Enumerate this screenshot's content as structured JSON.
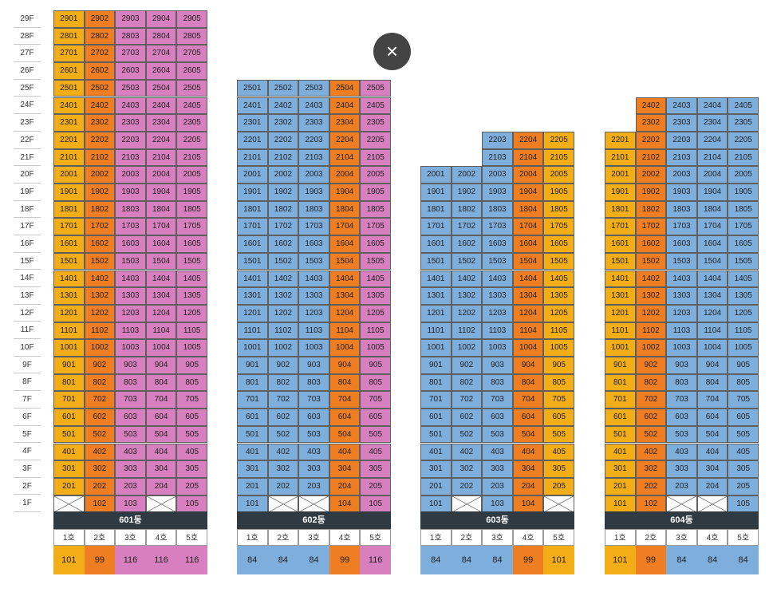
{
  "colors": {
    "yellow": "#f3ad17",
    "orange": "#ef7d22",
    "pink": "#d77fbf",
    "blue": "#7eaedc",
    "header": "#2f3a43"
  },
  "floors": [
    "29F",
    "28F",
    "27F",
    "26F",
    "25F",
    "24F",
    "23F",
    "22F",
    "21F",
    "20F",
    "19F",
    "18F",
    "17F",
    "16F",
    "15F",
    "14F",
    "13F",
    "12F",
    "11F",
    "10F",
    "9F",
    "8F",
    "7F",
    "6F",
    "5F",
    "4F",
    "3F",
    "2F",
    "1F"
  ],
  "close_icon": "×",
  "buildings": [
    {
      "name": "601동",
      "top_floor": 29,
      "unit_colors": [
        "yellow",
        "orange",
        "pink",
        "pink",
        "pink"
      ],
      "types": [
        "1호",
        "2호",
        "3호",
        "4호",
        "5호"
      ],
      "sizes": [
        "101",
        "99",
        "116",
        "116",
        "116"
      ],
      "floor_ranges": [
        [
          1,
          29
        ],
        [
          1,
          29
        ],
        [
          1,
          29
        ],
        [
          1,
          29
        ],
        [
          1,
          29
        ]
      ],
      "empty": [
        "101",
        "104"
      ]
    },
    {
      "name": "602동",
      "top_floor": 25,
      "unit_colors": [
        "blue",
        "blue",
        "blue",
        "orange",
        "pink"
      ],
      "types": [
        "1호",
        "2호",
        "3호",
        "4호",
        "5호"
      ],
      "sizes": [
        "84",
        "84",
        "84",
        "99",
        "116"
      ],
      "floor_ranges": [
        [
          1,
          25
        ],
        [
          1,
          25
        ],
        [
          1,
          25
        ],
        [
          1,
          25
        ],
        [
          1,
          25
        ]
      ],
      "empty": [
        "102",
        "103"
      ]
    },
    {
      "name": "603동",
      "top_floor": 22,
      "unit_colors": [
        "blue",
        "blue",
        "blue",
        "orange",
        "yellow"
      ],
      "types": [
        "1호",
        "2호",
        "3호",
        "4호",
        "5호"
      ],
      "sizes": [
        "84",
        "84",
        "84",
        "99",
        "101"
      ],
      "floor_ranges": [
        [
          1,
          20
        ],
        [
          1,
          20
        ],
        [
          1,
          22
        ],
        [
          1,
          22
        ],
        [
          1,
          22
        ]
      ],
      "empty": [
        "102",
        "105"
      ]
    },
    {
      "name": "604동",
      "top_floor": 24,
      "unit_colors": [
        "yellow",
        "orange",
        "blue",
        "blue",
        "blue"
      ],
      "types": [
        "1호",
        "2호",
        "3호",
        "4호",
        "5호"
      ],
      "sizes": [
        "101",
        "99",
        "84",
        "84",
        "84"
      ],
      "floor_ranges": [
        [
          1,
          22
        ],
        [
          1,
          24
        ],
        [
          1,
          24
        ],
        [
          1,
          24
        ],
        [
          1,
          24
        ]
      ],
      "empty": [
        "103",
        "104"
      ]
    }
  ]
}
